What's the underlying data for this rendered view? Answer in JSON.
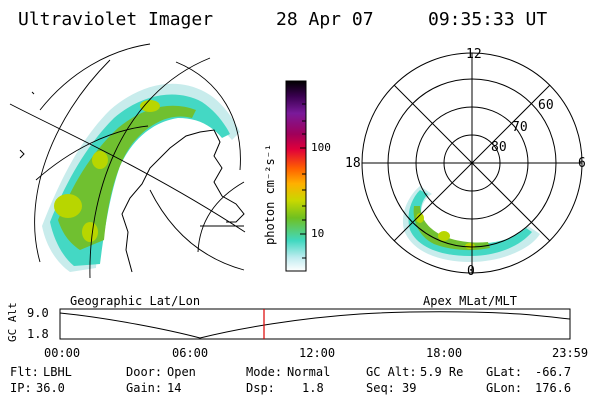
{
  "header": {
    "instrument": "Ultraviolet Imager",
    "date": "28 Apr 07",
    "time": "09:35:33 UT"
  },
  "geo_panel": {
    "label": "Geographic Lat/Lon"
  },
  "polar_panel": {
    "label": "Apex MLat/MLT",
    "mlt_labels": [
      "12",
      "18",
      "6",
      "0"
    ],
    "lat_labels": [
      "60",
      "70",
      "80"
    ]
  },
  "colorbar": {
    "unit": "photon cm⁻²s⁻¹",
    "ticks": [
      "100",
      "10"
    ],
    "colors": [
      "#000000",
      "#3a0050",
      "#7a1a9a",
      "#a0005a",
      "#e0003a",
      "#ff6000",
      "#ffb000",
      "#c8d800",
      "#70c020",
      "#40d8c0",
      "#c0ecf0",
      "#ffffff"
    ]
  },
  "altitude_plot": {
    "ylabel": "GC Alt",
    "ytick_top": "9.0",
    "ytick_bottom": "1.8",
    "xticks": [
      "00:00",
      "06:00",
      "12:00",
      "18:00",
      "23:59"
    ],
    "marker_color": "#dd0000"
  },
  "info": {
    "filter_label": "Flt:",
    "filter_value": "LBHL",
    "ip_label": "IP:",
    "ip_value": "36.0",
    "door_label": "Door:",
    "door_value": "Open",
    "gain_label": "Gain:",
    "gain_value": "14",
    "mode_label": "Mode:",
    "mode_value": "Normal",
    "dsp_label": "Dsp:",
    "dsp_value": "1.8",
    "gcalt_label": "GC Alt:",
    "gcalt_value": "5.9 Re",
    "seq_label": "Seq:",
    "seq_value": "39",
    "glat_label": "GLat:",
    "glat_value": "-66.7",
    "glon_label": "GLon:",
    "glon_value": "176.6"
  }
}
